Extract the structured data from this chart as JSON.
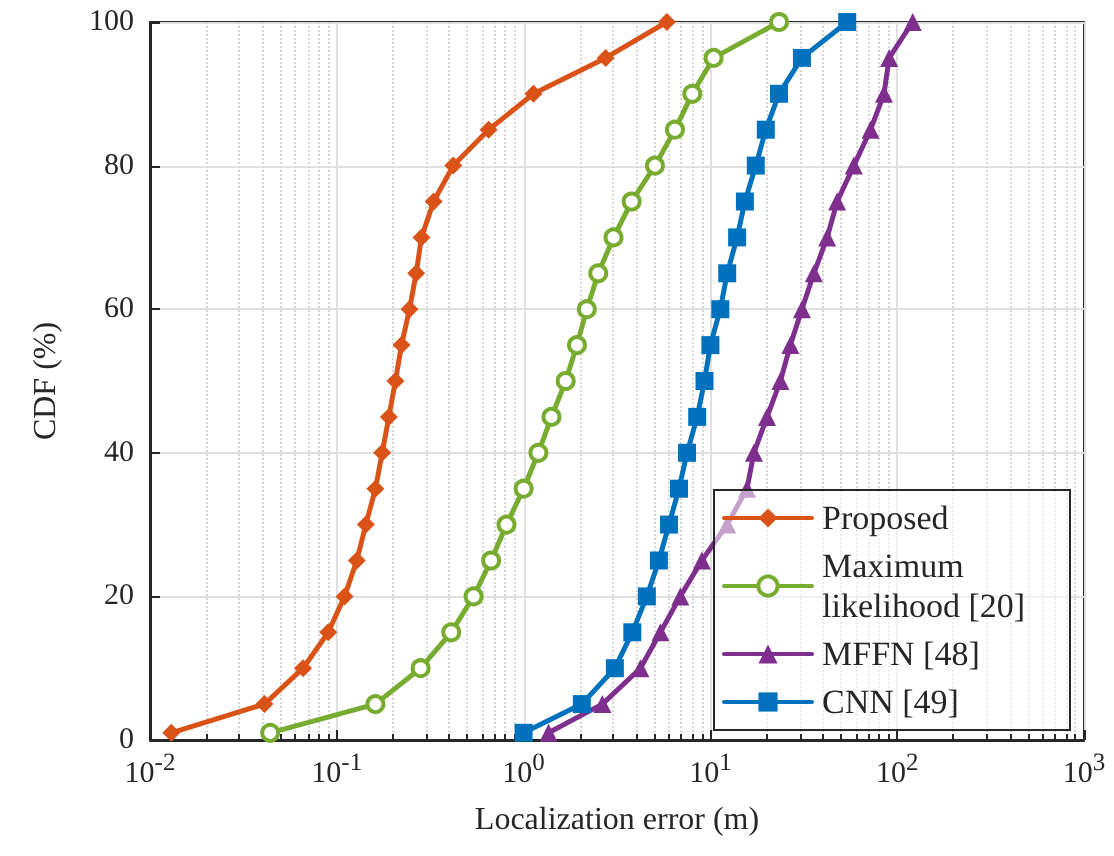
{
  "chart_data": {
    "type": "line",
    "xlabel": "Localization error (m)",
    "ylabel": "CDF (%)",
    "log": "x",
    "grid": true,
    "legend": "bottom right",
    "line_style": "solid",
    "xlim": [
      0.01,
      1000
    ],
    "ylim": [
      0,
      100
    ],
    "xticks": [
      {
        "value": 0.01,
        "label": "10$^{-2}$"
      },
      {
        "value": 0.1,
        "label": "10$^{-1}$"
      },
      {
        "value": 1,
        "label": "10$^{0}$"
      },
      {
        "value": 10,
        "label": "10$^{1}$"
      },
      {
        "value": 100,
        "label": "10$^{2}$"
      },
      {
        "value": 1000,
        "label": "10$^{3}$"
      }
    ],
    "yticks": [
      0,
      20,
      40,
      60,
      80,
      100
    ],
    "series": [
      {
        "name": "Proposed",
        "color": "#d95319",
        "marker": "diamond",
        "x": [
          0.013,
          0.041,
          0.066,
          0.09,
          0.11,
          0.128,
          0.143,
          0.161,
          0.175,
          0.19,
          0.206,
          0.222,
          0.245,
          0.266,
          0.284,
          0.33,
          0.42,
          0.65,
          1.13,
          2.75,
          5.85
        ],
        "values": [
          1,
          5,
          10,
          15,
          20,
          25,
          30,
          35,
          40,
          45,
          50,
          55,
          60,
          65,
          70,
          75,
          80,
          85,
          90,
          95,
          100
        ]
      },
      {
        "name": "Maximum likelihood [20]",
        "color": "#77ac30",
        "marker": "circle",
        "x": [
          0.044,
          0.161,
          0.281,
          0.41,
          0.54,
          0.67,
          0.81,
          1.0,
          1.2,
          1.41,
          1.68,
          1.93,
          2.18,
          2.51,
          3.03,
          3.79,
          5.05,
          6.46,
          8.0,
          10.4,
          23.3
        ],
        "values": [
          1,
          5,
          10,
          15,
          20,
          25,
          30,
          35,
          40,
          45,
          50,
          55,
          60,
          65,
          70,
          75,
          80,
          85,
          90,
          95,
          100
        ]
      },
      {
        "name": "MFFN [48]",
        "color": "#7e2f8e",
        "marker": "triangle",
        "x": [
          1.36,
          2.64,
          4.22,
          5.4,
          6.9,
          9.0,
          12.3,
          15.7,
          17.1,
          20.1,
          23.7,
          26.8,
          30.9,
          35.8,
          42.2,
          47.7,
          58.6,
          72,
          85,
          90.6,
          121
        ],
        "values": [
          1,
          5,
          10,
          15,
          20,
          25,
          30,
          35,
          40,
          45,
          50,
          55,
          60,
          65,
          70,
          75,
          80,
          85,
          90,
          95,
          100
        ]
      },
      {
        "name": "CNN [49]",
        "color": "#0072bd",
        "marker": "square",
        "x": [
          1.0,
          2.05,
          3.08,
          3.82,
          4.57,
          5.3,
          6.0,
          6.79,
          7.5,
          8.5,
          9.3,
          10.0,
          11.3,
          12.3,
          13.9,
          15.3,
          17.5,
          19.8,
          23.3,
          30.9,
          54
        ],
        "values": [
          1,
          5,
          10,
          15,
          20,
          25,
          30,
          35,
          40,
          45,
          50,
          55,
          60,
          65,
          70,
          75,
          80,
          85,
          90,
          95,
          100
        ]
      }
    ]
  }
}
